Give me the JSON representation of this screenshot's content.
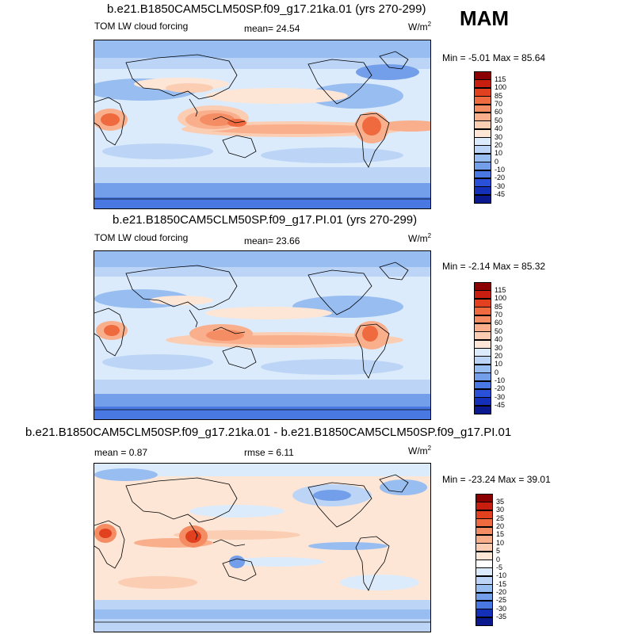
{
  "season": "MAM",
  "panels": [
    {
      "title": "b.e21.B1850CAM5CLM50SP.f09_g17.21ka.01 (yrs 270-299)",
      "left_label": "TOM LW cloud forcing",
      "mean_text": "mean=  24.54",
      "rmse_text": "",
      "unit": "W/m",
      "unit_sup": "2",
      "minmax": "Min =  -5.01 Max =  85.64",
      "colorbar": {
        "labels": [
          "115",
          "100",
          "85",
          "70",
          "60",
          "50",
          "40",
          "30",
          "20",
          "10",
          "0",
          "-10",
          "-20",
          "-30",
          "-45"
        ],
        "colors": [
          "#8b0000",
          "#c81e0f",
          "#e2411f",
          "#ef6a3f",
          "#f58d64",
          "#f9ae8c",
          "#fbcdb3",
          "#fde6d6",
          "#dcebfb",
          "#bcd5f6",
          "#98bdf1",
          "#739ee9",
          "#4a78e3",
          "#2a50d8",
          "#1430b8",
          "#0a1a8e"
        ]
      }
    },
    {
      "title": "b.e21.B1850CAM5CLM50SP.f09_g17.PI.01 (yrs 270-299)",
      "left_label": "TOM LW cloud forcing",
      "mean_text": "mean=  23.66",
      "rmse_text": "",
      "unit": "W/m",
      "unit_sup": "2",
      "minmax": "Min =  -2.14 Max =  85.32",
      "colorbar": {
        "labels": [
          "115",
          "100",
          "85",
          "70",
          "60",
          "50",
          "40",
          "30",
          "20",
          "10",
          "0",
          "-10",
          "-20",
          "-30",
          "-45"
        ],
        "colors": [
          "#8b0000",
          "#c81e0f",
          "#e2411f",
          "#ef6a3f",
          "#f58d64",
          "#f9ae8c",
          "#fbcdb3",
          "#fde6d6",
          "#dcebfb",
          "#bcd5f6",
          "#98bdf1",
          "#739ee9",
          "#4a78e3",
          "#2a50d8",
          "#1430b8",
          "#0a1a8e"
        ]
      }
    },
    {
      "title": "b.e21.B1850CAM5CLM50SP.f09_g17.21ka.01 - b.e21.B1850CAM5CLM50SP.f09_g17.PI.01",
      "left_label": "",
      "mean_text": "mean =   0.87",
      "rmse_text": "rmse =   6.11",
      "unit": "W/m",
      "unit_sup": "2",
      "minmax": "Min = -23.24 Max =  39.01",
      "colorbar": {
        "labels": [
          "35",
          "30",
          "25",
          "20",
          "15",
          "10",
          "5",
          "0",
          "-5",
          "-10",
          "-15",
          "-20",
          "-25",
          "-30",
          "-35"
        ],
        "colors": [
          "#8b0000",
          "#c81e0f",
          "#e2411f",
          "#ef6a3f",
          "#f58d64",
          "#f9ae8c",
          "#fbcdb3",
          "#fde6d6",
          "#ffffff",
          "#dcebfb",
          "#bcd5f6",
          "#98bdf1",
          "#739ee9",
          "#4a78e3",
          "#1430b8",
          "#0a1a8e"
        ]
      }
    }
  ]
}
